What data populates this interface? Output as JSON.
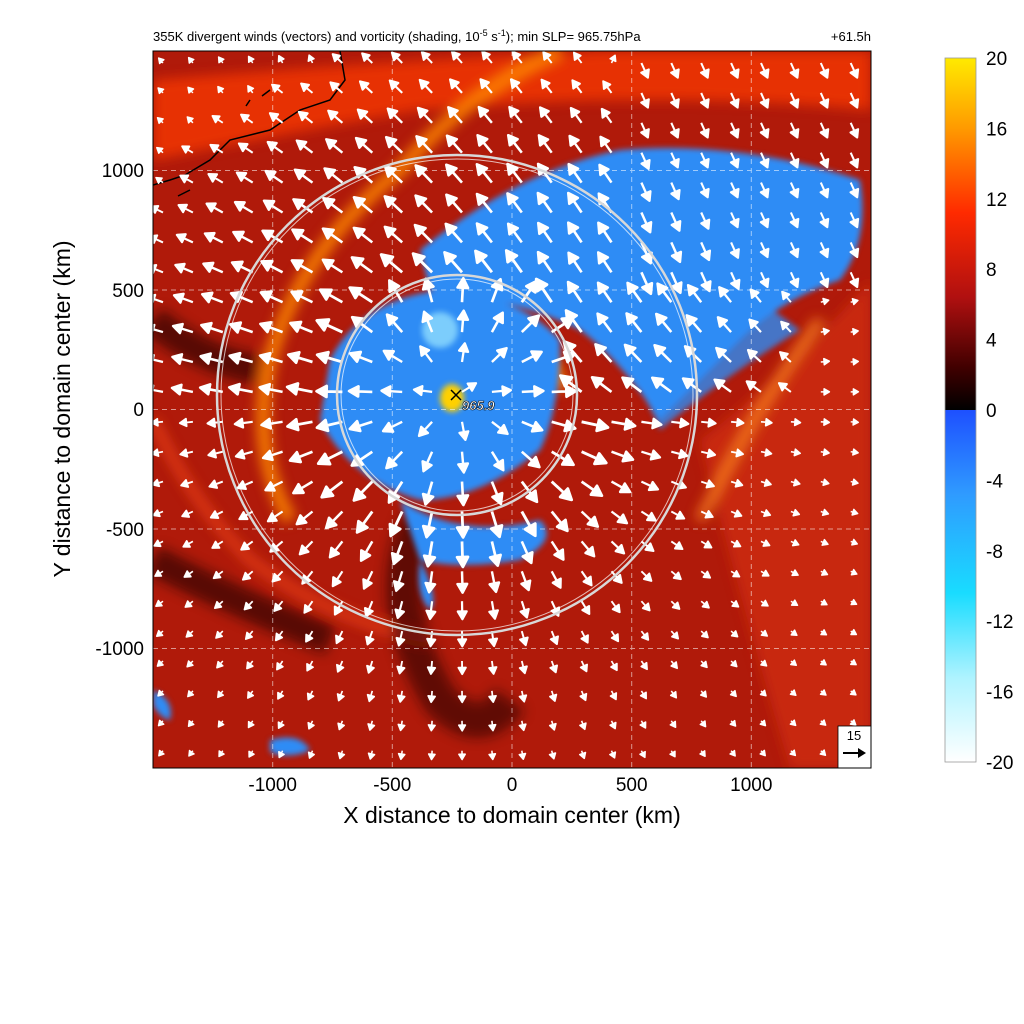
{
  "chart_data": {
    "type": "heatmap",
    "title_main": "355K divergent winds (vectors) and vorticity (shading, 10",
    "title_exp1": "-5",
    "title_mid": " s",
    "title_exp2": "-1",
    "title_tail": "); min SLP= 965.75hPa",
    "forecast_time": "+61.5h",
    "xlabel": "X distance to domain center (km)",
    "ylabel": "Y distance to domain center (km)",
    "xlim": [
      -1500,
      1500
    ],
    "ylim": [
      -1500,
      1500
    ],
    "xticks": [
      -1000,
      -500,
      0,
      500,
      1000
    ],
    "yticks": [
      -1000,
      -500,
      0,
      500,
      1000
    ],
    "grid": true,
    "center_marker": {
      "x": -230,
      "y": 60,
      "label": "965.9"
    },
    "range_rings_km": [
      500,
      1000
    ],
    "reference_vector": {
      "label": "15"
    },
    "colorbar": {
      "min": -20,
      "max": 20,
      "tick_labels": [
        "20",
        "16",
        "12",
        "8",
        "4",
        "0",
        "-4",
        "-8",
        "-12",
        "-16",
        "-20"
      ],
      "colors_high": [
        "#ffea00",
        "#ff9a00",
        "#ff2a00",
        "#b01010",
        "#400000",
        "#000000"
      ],
      "colors_low": [
        "#1e50ff",
        "#2f9bff",
        "#19dcff",
        "#aef3ff",
        "#ffffff"
      ]
    },
    "colors": {
      "shading_background": "#b01a0a",
      "negative_vorticity": "#2d8cf5",
      "vector": "#ffffff",
      "ring": "#d8d8d8"
    }
  }
}
